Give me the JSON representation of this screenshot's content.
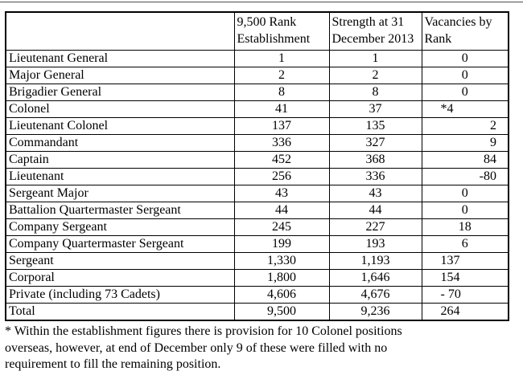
{
  "table": {
    "headers": [
      "",
      "9,500 Rank Establishment",
      "Strength at 31 December 2013",
      "Vacancies by Rank"
    ],
    "rows": [
      {
        "rank": "Lieutenant General",
        "establishment": "1",
        "strength": "1",
        "vacancies": "0",
        "vac_align": "center"
      },
      {
        "rank": "Major General",
        "establishment": "2",
        "strength": "2",
        "vacancies": "0",
        "vac_align": "center"
      },
      {
        "rank": "Brigadier General",
        "establishment": "8",
        "strength": "8",
        "vacancies": "0",
        "vac_align": "center"
      },
      {
        "rank": "Colonel",
        "establishment": "41",
        "strength": "37",
        "vacancies": "*4",
        "vac_align": "left"
      },
      {
        "rank": "Lieutenant Colonel",
        "establishment": "137",
        "strength": "135",
        "vacancies": "2",
        "vac_align": "right"
      },
      {
        "rank": "Commandant",
        "establishment": "336",
        "strength": "327",
        "vacancies": "9",
        "vac_align": "right"
      },
      {
        "rank": "Captain",
        "establishment": "452",
        "strength": "368",
        "vacancies": "84",
        "vac_align": "right"
      },
      {
        "rank": "Lieutenant",
        "establishment": "256",
        "strength": "336",
        "vacancies": "-80",
        "vac_align": "right"
      },
      {
        "rank": "Sergeant Major",
        "establishment": "43",
        "strength": "43",
        "vacancies": "0",
        "vac_align": "center"
      },
      {
        "rank": "Battalion Quartermaster Sergeant",
        "establishment": "44",
        "strength": "44",
        "vacancies": "0",
        "vac_align": "center"
      },
      {
        "rank": "Company Sergeant",
        "establishment": "245",
        "strength": "227",
        "vacancies": "18",
        "vac_align": "center"
      },
      {
        "rank": "Company Quartermaster Sergeant",
        "establishment": "199",
        "strength": "193",
        "vacancies": "6",
        "vac_align": "center"
      },
      {
        "rank": "Sergeant",
        "establishment": "1,330",
        "strength": "1,193",
        "vacancies": "137",
        "vac_align": "left"
      },
      {
        "rank": "Corporal",
        "establishment": "1,800",
        "strength": "1,646",
        "vacancies": "154",
        "vac_align": "left"
      },
      {
        "rank": "Private (including 73 Cadets)",
        "establishment": "4,606",
        "strength": "4,676",
        "vacancies": "- 70",
        "vac_align": "left"
      },
      {
        "rank": "Total",
        "establishment": "9,500",
        "strength": "9,236",
        "vacancies": "264",
        "vac_align": "left"
      }
    ]
  },
  "footnote": {
    "lines": [
      "* Within the establishment figures there is provision for 10 Colonel positions",
      "overseas, however, at end of December only 9 of these were filled with no",
      "requirement to fill the remaining position."
    ]
  }
}
